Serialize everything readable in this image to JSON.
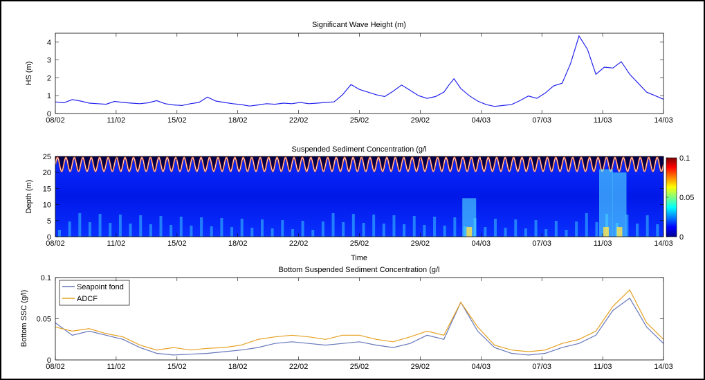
{
  "chart_data": [
    {
      "type": "line",
      "title": "Significant Wave Height (m)",
      "xlabel": "",
      "ylabel": "HS (m)",
      "x_ticks": [
        "08/02",
        "11/02",
        "15/02",
        "18/02",
        "22/02",
        "25/02",
        "29/02",
        "04/03",
        "07/03",
        "11/03",
        "14/03"
      ],
      "ylim": [
        0,
        4.5
      ],
      "y_ticks": [
        "0",
        "1",
        "2",
        "3",
        "4"
      ],
      "series": [
        {
          "color": "#2222ee",
          "x": [
            0,
            0.5,
            1,
            1.5,
            2,
            2.5,
            3,
            3.5,
            4,
            4.5,
            5,
            5.5,
            6,
            6.5,
            7,
            7.5,
            8,
            8.5,
            9,
            9.5,
            10,
            10.5,
            11,
            11.5,
            12,
            12.5,
            13,
            13.5,
            14,
            14.5,
            15,
            15.5,
            16,
            16.5,
            17,
            17.5,
            18,
            18.5,
            19,
            19.5,
            20,
            20.5,
            21,
            21.5,
            22,
            22.5,
            23,
            23.3,
            23.6,
            24,
            24.5,
            25,
            25.5,
            26,
            26.5,
            27,
            27.5,
            28,
            28.5,
            29,
            29.5,
            30,
            30.5,
            31,
            31.5,
            32,
            32.5,
            33,
            33.5,
            34,
            34.5,
            35,
            35.5,
            36
          ],
          "y": [
            0.65,
            0.6,
            0.78,
            0.7,
            0.58,
            0.55,
            0.52,
            0.68,
            0.62,
            0.58,
            0.55,
            0.6,
            0.72,
            0.55,
            0.48,
            0.45,
            0.55,
            0.62,
            0.92,
            0.7,
            0.62,
            0.55,
            0.5,
            0.42,
            0.48,
            0.55,
            0.52,
            0.58,
            0.55,
            0.62,
            0.55,
            0.58,
            0.62,
            0.65,
            1.05,
            1.62,
            1.35,
            1.2,
            1.05,
            0.95,
            1.25,
            1.6,
            1.3,
            1.0,
            0.85,
            0.95,
            1.2,
            1.6,
            1.95,
            1.4,
            1.0,
            0.7,
            0.5,
            0.4,
            0.45,
            0.5,
            0.72,
            0.98,
            0.85,
            1.15,
            1.55,
            1.7,
            2.8,
            4.35,
            3.6,
            2.2,
            2.6,
            2.55,
            2.9,
            2.2,
            1.7,
            1.2,
            1.0,
            0.8
          ]
        }
      ]
    },
    {
      "type": "heatmap",
      "title": "Suspended Sediment Concentration (g/l",
      "xlabel": "Time",
      "ylabel": "Depth (m)",
      "x_ticks": [
        "08/02",
        "11/02",
        "15/02",
        "18/02",
        "22/02",
        "25/02",
        "29/02",
        "04/03",
        "07/03",
        "11/03",
        "14/03"
      ],
      "ylim": [
        0,
        25
      ],
      "y_ticks": [
        "0",
        "5",
        "10",
        "15",
        "20",
        "25"
      ],
      "colorbar": {
        "range": [
          0,
          0.1
        ],
        "ticks": [
          "0",
          "0.05",
          "0.1"
        ],
        "colormap": "jet"
      },
      "features": [
        {
          "x": 24.5,
          "depth_top": 12,
          "intensity": 0.035
        },
        {
          "x": 32.6,
          "depth_top": 21,
          "intensity": 0.06
        },
        {
          "x": 33.4,
          "depth_top": 20,
          "intensity": 0.055
        }
      ]
    },
    {
      "type": "line",
      "title": "Bottom Suspended Sediment Concentration (g/l",
      "xlabel": "",
      "ylabel": "Bottom SSC (g/l)",
      "x_ticks": [
        "08/02",
        "11/02",
        "15/02",
        "18/02",
        "22/02",
        "25/02",
        "29/02",
        "04/03",
        "07/03",
        "11/03",
        "14/03"
      ],
      "ylim": [
        0,
        0.1
      ],
      "y_ticks": [
        "0",
        "0.05",
        "0.1"
      ],
      "legend_position": "top-left",
      "series": [
        {
          "name": "Seapoint fond",
          "color": "#6677bb",
          "x": [
            0,
            1,
            2,
            3,
            4,
            5,
            6,
            7,
            8,
            9,
            10,
            11,
            12,
            13,
            14,
            15,
            16,
            17,
            18,
            19,
            20,
            21,
            22,
            23,
            24,
            25,
            26,
            27,
            28,
            29,
            30,
            31,
            32,
            33,
            34,
            35,
            36
          ],
          "y": [
            0.045,
            0.03,
            0.035,
            0.03,
            0.025,
            0.015,
            0.008,
            0.006,
            0.007,
            0.008,
            0.01,
            0.012,
            0.015,
            0.02,
            0.022,
            0.02,
            0.018,
            0.02,
            0.022,
            0.018,
            0.015,
            0.02,
            0.03,
            0.025,
            0.07,
            0.035,
            0.015,
            0.008,
            0.006,
            0.008,
            0.015,
            0.02,
            0.03,
            0.06,
            0.075,
            0.04,
            0.02
          ]
        },
        {
          "name": "ADCF",
          "color": "#e6a020",
          "x": [
            0,
            1,
            2,
            3,
            4,
            5,
            6,
            7,
            8,
            9,
            10,
            11,
            12,
            13,
            14,
            15,
            16,
            17,
            18,
            19,
            20,
            21,
            22,
            23,
            24,
            25,
            26,
            27,
            28,
            29,
            30,
            31,
            32,
            33,
            34,
            35,
            36
          ],
          "y": [
            0.04,
            0.035,
            0.038,
            0.032,
            0.028,
            0.018,
            0.012,
            0.015,
            0.012,
            0.014,
            0.015,
            0.018,
            0.025,
            0.028,
            0.03,
            0.028,
            0.025,
            0.03,
            0.03,
            0.025,
            0.022,
            0.028,
            0.035,
            0.03,
            0.07,
            0.04,
            0.018,
            0.012,
            0.01,
            0.012,
            0.02,
            0.025,
            0.035,
            0.065,
            0.085,
            0.045,
            0.025
          ]
        }
      ]
    }
  ]
}
